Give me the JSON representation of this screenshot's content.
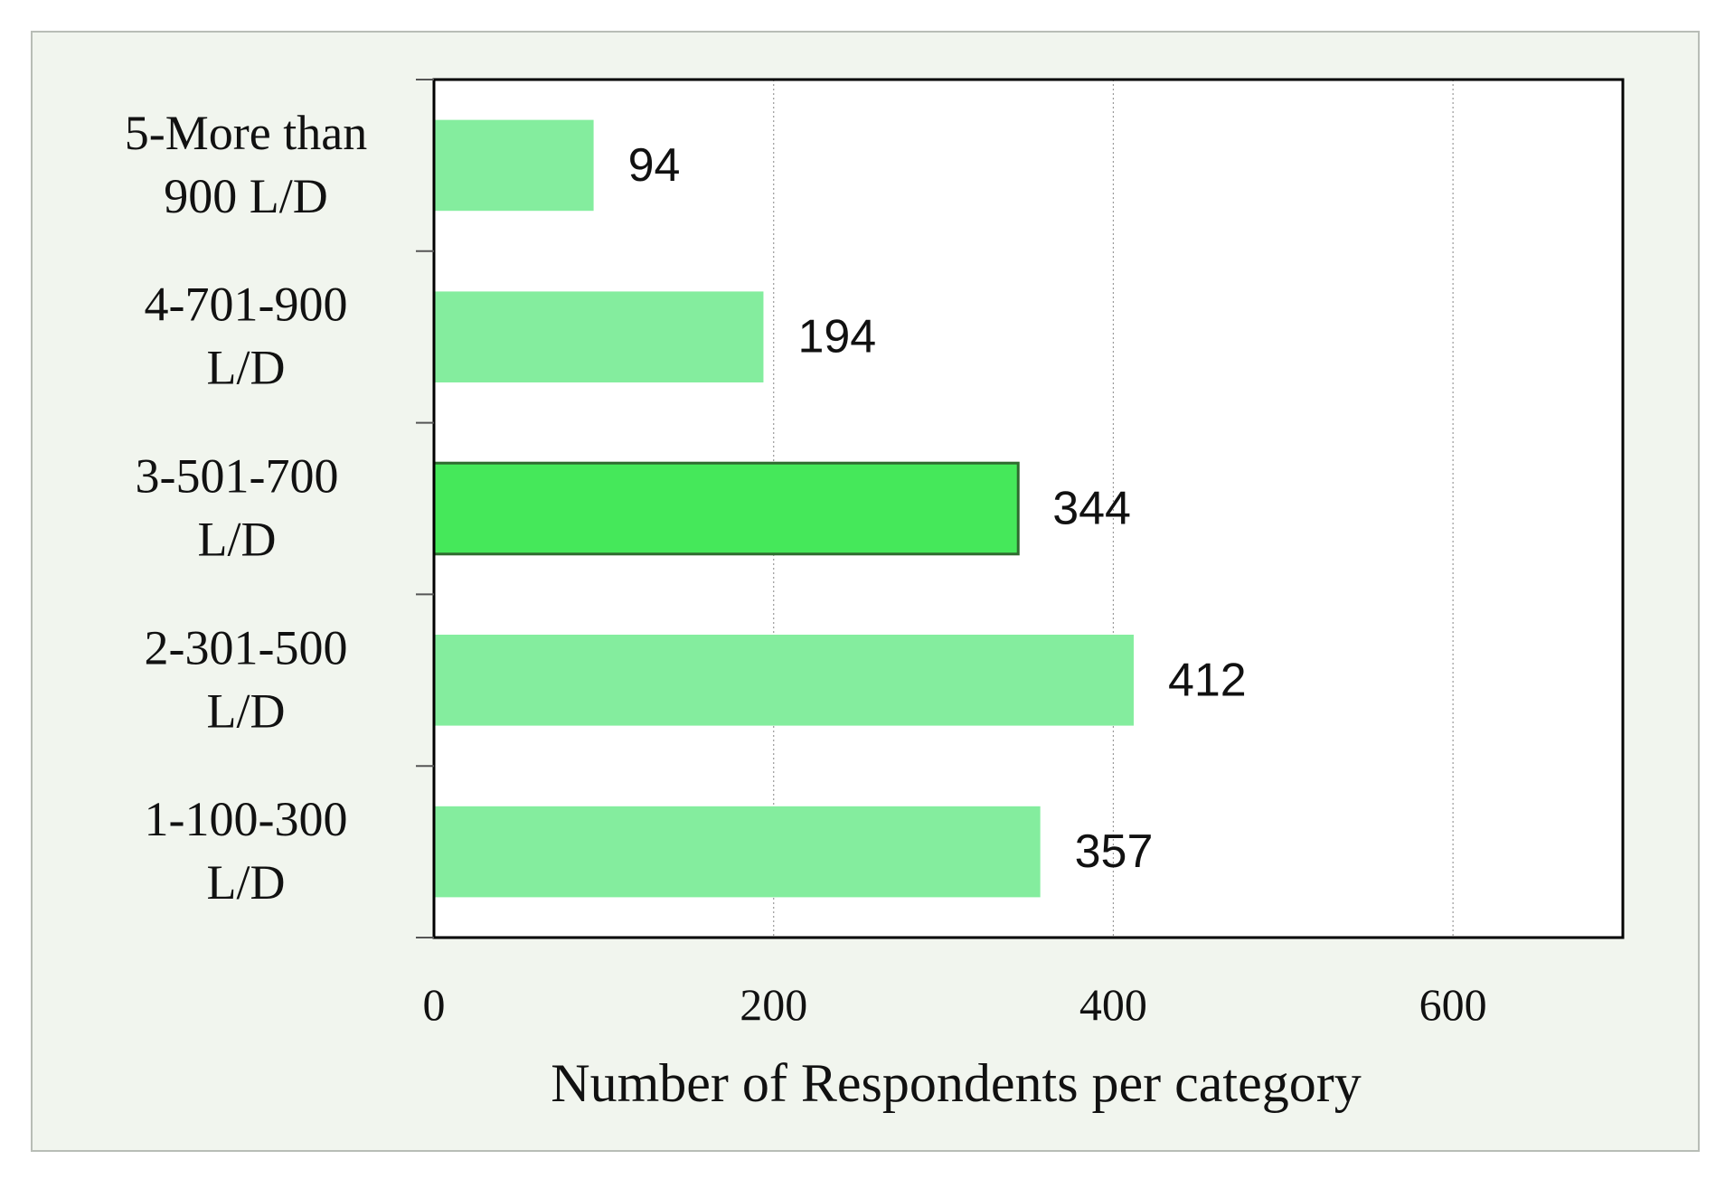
{
  "chart_data": {
    "type": "bar",
    "orientation": "horizontal",
    "categories": [
      "5-More than 900 L/D",
      "4-701-900 L/D",
      "3-501-700 L/D",
      "2-301-500 L/D",
      "1-100-300 L/D"
    ],
    "category_labels": [
      [
        "5-More than",
        "900 L/D"
      ],
      [
        "4-701-900",
        "L/D"
      ],
      [
        "3-501-700",
        "L/D"
      ],
      [
        "2-301-500",
        "L/D"
      ],
      [
        "1-100-300",
        "L/D"
      ]
    ],
    "values": [
      94,
      194,
      344,
      412,
      357
    ],
    "data_labels": [
      "94",
      "194",
      "344",
      "412",
      "357"
    ],
    "highlighted_index": 2,
    "xlabel": "Number of Respondents per category",
    "ylabel": "",
    "title": "",
    "xlim": [
      0,
      700
    ],
    "xticks": [
      0,
      200,
      400,
      600
    ],
    "xtick_labels": [
      "0",
      "200",
      "400",
      "600"
    ],
    "grid": "vertical dotted",
    "legend": "none",
    "colors": {
      "bar": "#84ed9e",
      "highlight": "#45e85a",
      "highlight_border": "#2f6b2f",
      "background": "#f1f5ee",
      "plot_background": "#ffffff"
    }
  }
}
